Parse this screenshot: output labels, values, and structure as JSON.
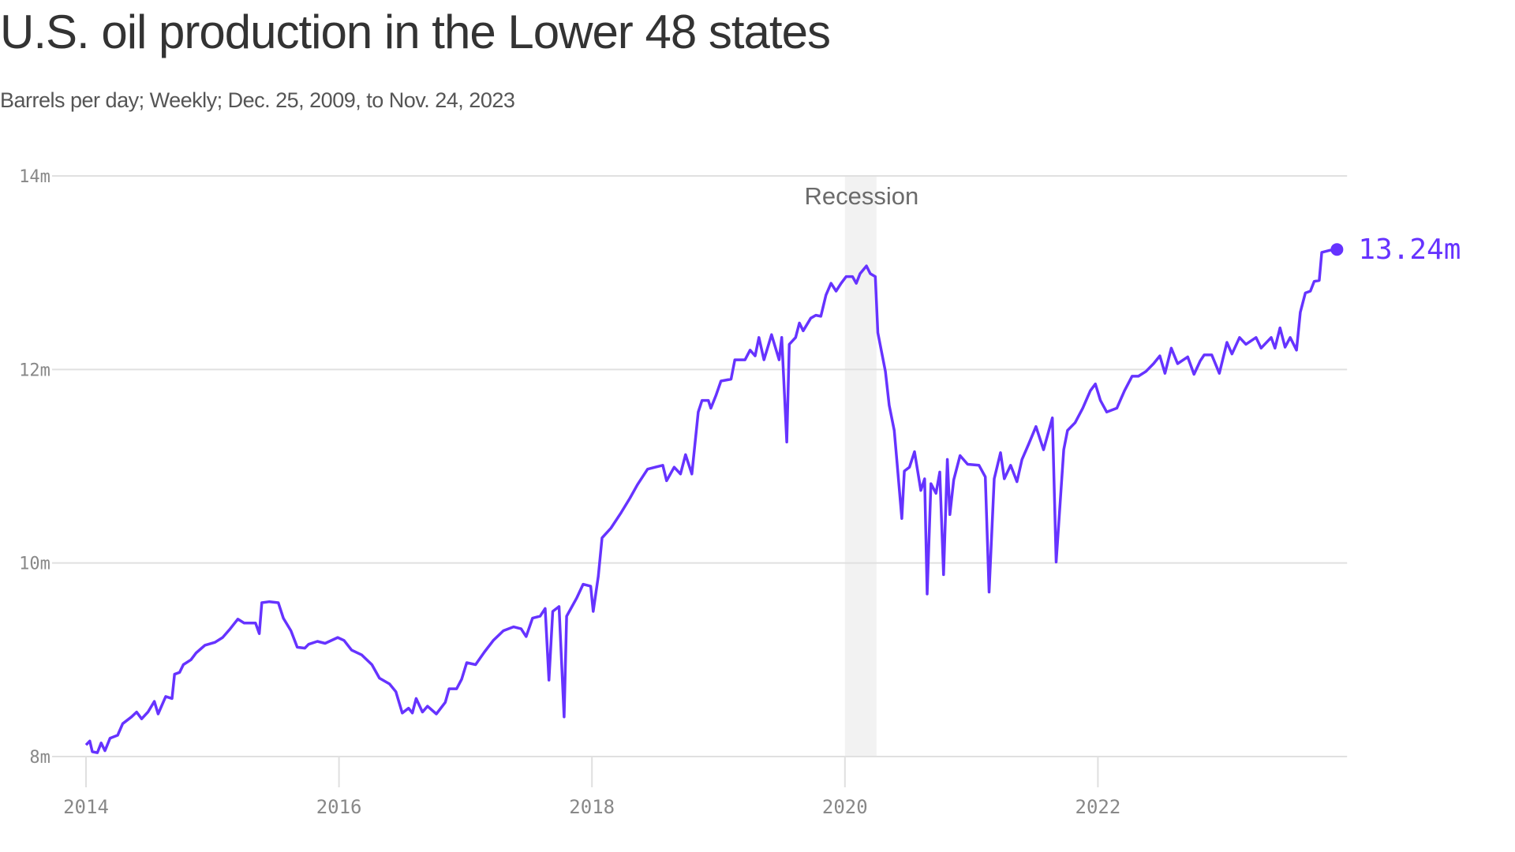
{
  "title": "U.S. oil production in the Lower 48 states",
  "subtitle": "Barrels per day; Weekly; Dec. 25, 2009, to Nov. 24, 2023",
  "chart_data": {
    "type": "line",
    "title": "U.S. oil production in the Lower 48 states",
    "subtitle": "Barrels per day; Weekly; Dec. 25, 2009, to Nov. 24, 2023",
    "xlabel": "",
    "ylabel": "",
    "xlim": [
      2013.75,
      2023.97
    ],
    "ylim": [
      8,
      14
    ],
    "grid": "horizontal",
    "line_color": "#6633ff",
    "y_ticks": [
      {
        "value": 14,
        "label": "14m"
      },
      {
        "value": 12,
        "label": "12m"
      },
      {
        "value": 10,
        "label": "10m"
      },
      {
        "value": 8,
        "label": "8m"
      }
    ],
    "x_ticks": [
      {
        "value": 2014,
        "label": "2014"
      },
      {
        "value": 2016,
        "label": "2016"
      },
      {
        "value": 2018,
        "label": "2018"
      },
      {
        "value": 2020,
        "label": "2020"
      },
      {
        "value": 2022,
        "label": "2022"
      }
    ],
    "annotations": {
      "recession": {
        "label": "Recession",
        "start": 2020.0,
        "end": 2020.25,
        "color": "#f2f2f2"
      },
      "last_value": {
        "label": "13.24m",
        "x": 2023.89,
        "y": 13.24
      }
    },
    "series": [
      {
        "points": [
          [
            2014.0,
            8.12
          ],
          [
            2014.03,
            8.16
          ],
          [
            2014.05,
            8.05
          ],
          [
            2014.09,
            8.04
          ],
          [
            2014.12,
            8.14
          ],
          [
            2014.15,
            8.06
          ],
          [
            2014.19,
            8.19
          ],
          [
            2014.25,
            8.22
          ],
          [
            2014.29,
            8.34
          ],
          [
            2014.36,
            8.41
          ],
          [
            2014.4,
            8.46
          ],
          [
            2014.44,
            8.39
          ],
          [
            2014.49,
            8.46
          ],
          [
            2014.54,
            8.57
          ],
          [
            2014.57,
            8.44
          ],
          [
            2014.63,
            8.62
          ],
          [
            2014.68,
            8.6
          ],
          [
            2014.7,
            8.85
          ],
          [
            2014.74,
            8.87
          ],
          [
            2014.77,
            8.95
          ],
          [
            2014.83,
            9.0
          ],
          [
            2014.87,
            9.07
          ],
          [
            2014.94,
            9.15
          ],
          [
            2015.02,
            9.18
          ],
          [
            2015.08,
            9.23
          ],
          [
            2015.14,
            9.32
          ],
          [
            2015.2,
            9.42
          ],
          [
            2015.25,
            9.38
          ],
          [
            2015.34,
            9.38
          ],
          [
            2015.37,
            9.27
          ],
          [
            2015.39,
            9.59
          ],
          [
            2015.45,
            9.6
          ],
          [
            2015.52,
            9.59
          ],
          [
            2015.56,
            9.43
          ],
          [
            2015.62,
            9.3
          ],
          [
            2015.67,
            9.13
          ],
          [
            2015.73,
            9.12
          ],
          [
            2015.76,
            9.16
          ],
          [
            2015.83,
            9.19
          ],
          [
            2015.89,
            9.17
          ],
          [
            2015.99,
            9.23
          ],
          [
            2016.04,
            9.2
          ],
          [
            2016.1,
            9.1
          ],
          [
            2016.18,
            9.05
          ],
          [
            2016.26,
            8.95
          ],
          [
            2016.32,
            8.81
          ],
          [
            2016.4,
            8.75
          ],
          [
            2016.45,
            8.67
          ],
          [
            2016.5,
            8.45
          ],
          [
            2016.55,
            8.5
          ],
          [
            2016.58,
            8.45
          ],
          [
            2016.61,
            8.6
          ],
          [
            2016.66,
            8.46
          ],
          [
            2016.7,
            8.52
          ],
          [
            2016.77,
            8.44
          ],
          [
            2016.84,
            8.56
          ],
          [
            2016.87,
            8.7
          ],
          [
            2016.93,
            8.7
          ],
          [
            2016.97,
            8.8
          ],
          [
            2017.01,
            8.97
          ],
          [
            2017.08,
            8.95
          ],
          [
            2017.15,
            9.08
          ],
          [
            2017.22,
            9.2
          ],
          [
            2017.3,
            9.3
          ],
          [
            2017.38,
            9.34
          ],
          [
            2017.44,
            9.32
          ],
          [
            2017.48,
            9.24
          ],
          [
            2017.53,
            9.43
          ],
          [
            2017.59,
            9.45
          ],
          [
            2017.63,
            9.53
          ],
          [
            2017.66,
            8.79
          ],
          [
            2017.69,
            9.5
          ],
          [
            2017.74,
            9.55
          ],
          [
            2017.78,
            8.41
          ],
          [
            2017.8,
            9.45
          ],
          [
            2017.88,
            9.64
          ],
          [
            2017.93,
            9.78
          ],
          [
            2017.99,
            9.76
          ],
          [
            2018.01,
            9.5
          ],
          [
            2018.05,
            9.86
          ],
          [
            2018.08,
            10.26
          ],
          [
            2018.15,
            10.36
          ],
          [
            2018.23,
            10.52
          ],
          [
            2018.3,
            10.67
          ],
          [
            2018.36,
            10.81
          ],
          [
            2018.44,
            10.97
          ],
          [
            2018.5,
            10.99
          ],
          [
            2018.56,
            11.01
          ],
          [
            2018.59,
            10.85
          ],
          [
            2018.65,
            10.99
          ],
          [
            2018.7,
            10.92
          ],
          [
            2018.74,
            11.12
          ],
          [
            2018.79,
            10.92
          ],
          [
            2018.84,
            11.56
          ],
          [
            2018.87,
            11.68
          ],
          [
            2018.92,
            11.68
          ],
          [
            2018.94,
            11.6
          ],
          [
            2018.98,
            11.73
          ],
          [
            2019.02,
            11.88
          ],
          [
            2019.1,
            11.9
          ],
          [
            2019.13,
            12.1
          ],
          [
            2019.21,
            12.1
          ],
          [
            2019.25,
            12.2
          ],
          [
            2019.29,
            12.14
          ],
          [
            2019.32,
            12.33
          ],
          [
            2019.36,
            12.1
          ],
          [
            2019.42,
            12.36
          ],
          [
            2019.48,
            12.1
          ],
          [
            2019.5,
            12.33
          ],
          [
            2019.54,
            11.25
          ],
          [
            2019.56,
            12.26
          ],
          [
            2019.61,
            12.33
          ],
          [
            2019.64,
            12.48
          ],
          [
            2019.67,
            12.4
          ],
          [
            2019.73,
            12.53
          ],
          [
            2019.77,
            12.56
          ],
          [
            2019.81,
            12.55
          ],
          [
            2019.85,
            12.77
          ],
          [
            2019.89,
            12.89
          ],
          [
            2019.93,
            12.81
          ],
          [
            2019.97,
            12.89
          ],
          [
            2020.01,
            12.96
          ],
          [
            2020.06,
            12.96
          ],
          [
            2020.09,
            12.89
          ],
          [
            2020.12,
            12.99
          ],
          [
            2020.17,
            13.07
          ],
          [
            2020.2,
            12.99
          ],
          [
            2020.24,
            12.96
          ],
          [
            2020.26,
            12.38
          ],
          [
            2020.32,
            11.98
          ],
          [
            2020.35,
            11.63
          ],
          [
            2020.39,
            11.37
          ],
          [
            2020.41,
            11.07
          ],
          [
            2020.45,
            10.46
          ],
          [
            2020.47,
            10.95
          ],
          [
            2020.51,
            10.99
          ],
          [
            2020.55,
            11.15
          ],
          [
            2020.6,
            10.75
          ],
          [
            2020.63,
            10.87
          ],
          [
            2020.65,
            9.68
          ],
          [
            2020.68,
            10.82
          ],
          [
            2020.72,
            10.72
          ],
          [
            2020.75,
            10.94
          ],
          [
            2020.78,
            9.88
          ],
          [
            2020.81,
            11.07
          ],
          [
            2020.83,
            10.5
          ],
          [
            2020.86,
            10.86
          ],
          [
            2020.91,
            11.11
          ],
          [
            2020.97,
            11.02
          ],
          [
            2021.06,
            11.01
          ],
          [
            2021.11,
            10.89
          ],
          [
            2021.14,
            9.7
          ],
          [
            2021.18,
            10.87
          ],
          [
            2021.23,
            11.14
          ],
          [
            2021.26,
            10.87
          ],
          [
            2021.31,
            11.01
          ],
          [
            2021.36,
            10.84
          ],
          [
            2021.4,
            11.07
          ],
          [
            2021.45,
            11.22
          ],
          [
            2021.51,
            11.41
          ],
          [
            2021.57,
            11.17
          ],
          [
            2021.64,
            11.5
          ],
          [
            2021.67,
            10.01
          ],
          [
            2021.73,
            11.17
          ],
          [
            2021.76,
            11.37
          ],
          [
            2021.82,
            11.45
          ],
          [
            2021.88,
            11.6
          ],
          [
            2021.94,
            11.78
          ],
          [
            2021.98,
            11.85
          ],
          [
            2022.02,
            11.68
          ],
          [
            2022.07,
            11.56
          ],
          [
            2022.15,
            11.6
          ],
          [
            2022.21,
            11.78
          ],
          [
            2022.27,
            11.93
          ],
          [
            2022.32,
            11.93
          ],
          [
            2022.38,
            11.98
          ],
          [
            2022.44,
            12.06
          ],
          [
            2022.49,
            12.14
          ],
          [
            2022.53,
            11.96
          ],
          [
            2022.58,
            12.22
          ],
          [
            2022.63,
            12.06
          ],
          [
            2022.71,
            12.13
          ],
          [
            2022.76,
            11.95
          ],
          [
            2022.81,
            12.09
          ],
          [
            2022.84,
            12.15
          ],
          [
            2022.9,
            12.15
          ],
          [
            2022.96,
            11.96
          ],
          [
            2023.02,
            12.28
          ],
          [
            2023.06,
            12.16
          ],
          [
            2023.12,
            12.33
          ],
          [
            2023.17,
            12.26
          ],
          [
            2023.25,
            12.33
          ],
          [
            2023.29,
            12.22
          ],
          [
            2023.37,
            12.33
          ],
          [
            2023.4,
            12.22
          ],
          [
            2023.44,
            12.43
          ],
          [
            2023.48,
            12.23
          ],
          [
            2023.52,
            12.33
          ],
          [
            2023.57,
            12.2
          ],
          [
            2023.6,
            12.59
          ],
          [
            2023.64,
            12.79
          ],
          [
            2023.68,
            12.81
          ],
          [
            2023.71,
            12.91
          ],
          [
            2023.75,
            12.92
          ],
          [
            2023.77,
            13.21
          ],
          [
            2023.83,
            13.23
          ],
          [
            2023.89,
            13.24
          ]
        ]
      }
    ]
  }
}
